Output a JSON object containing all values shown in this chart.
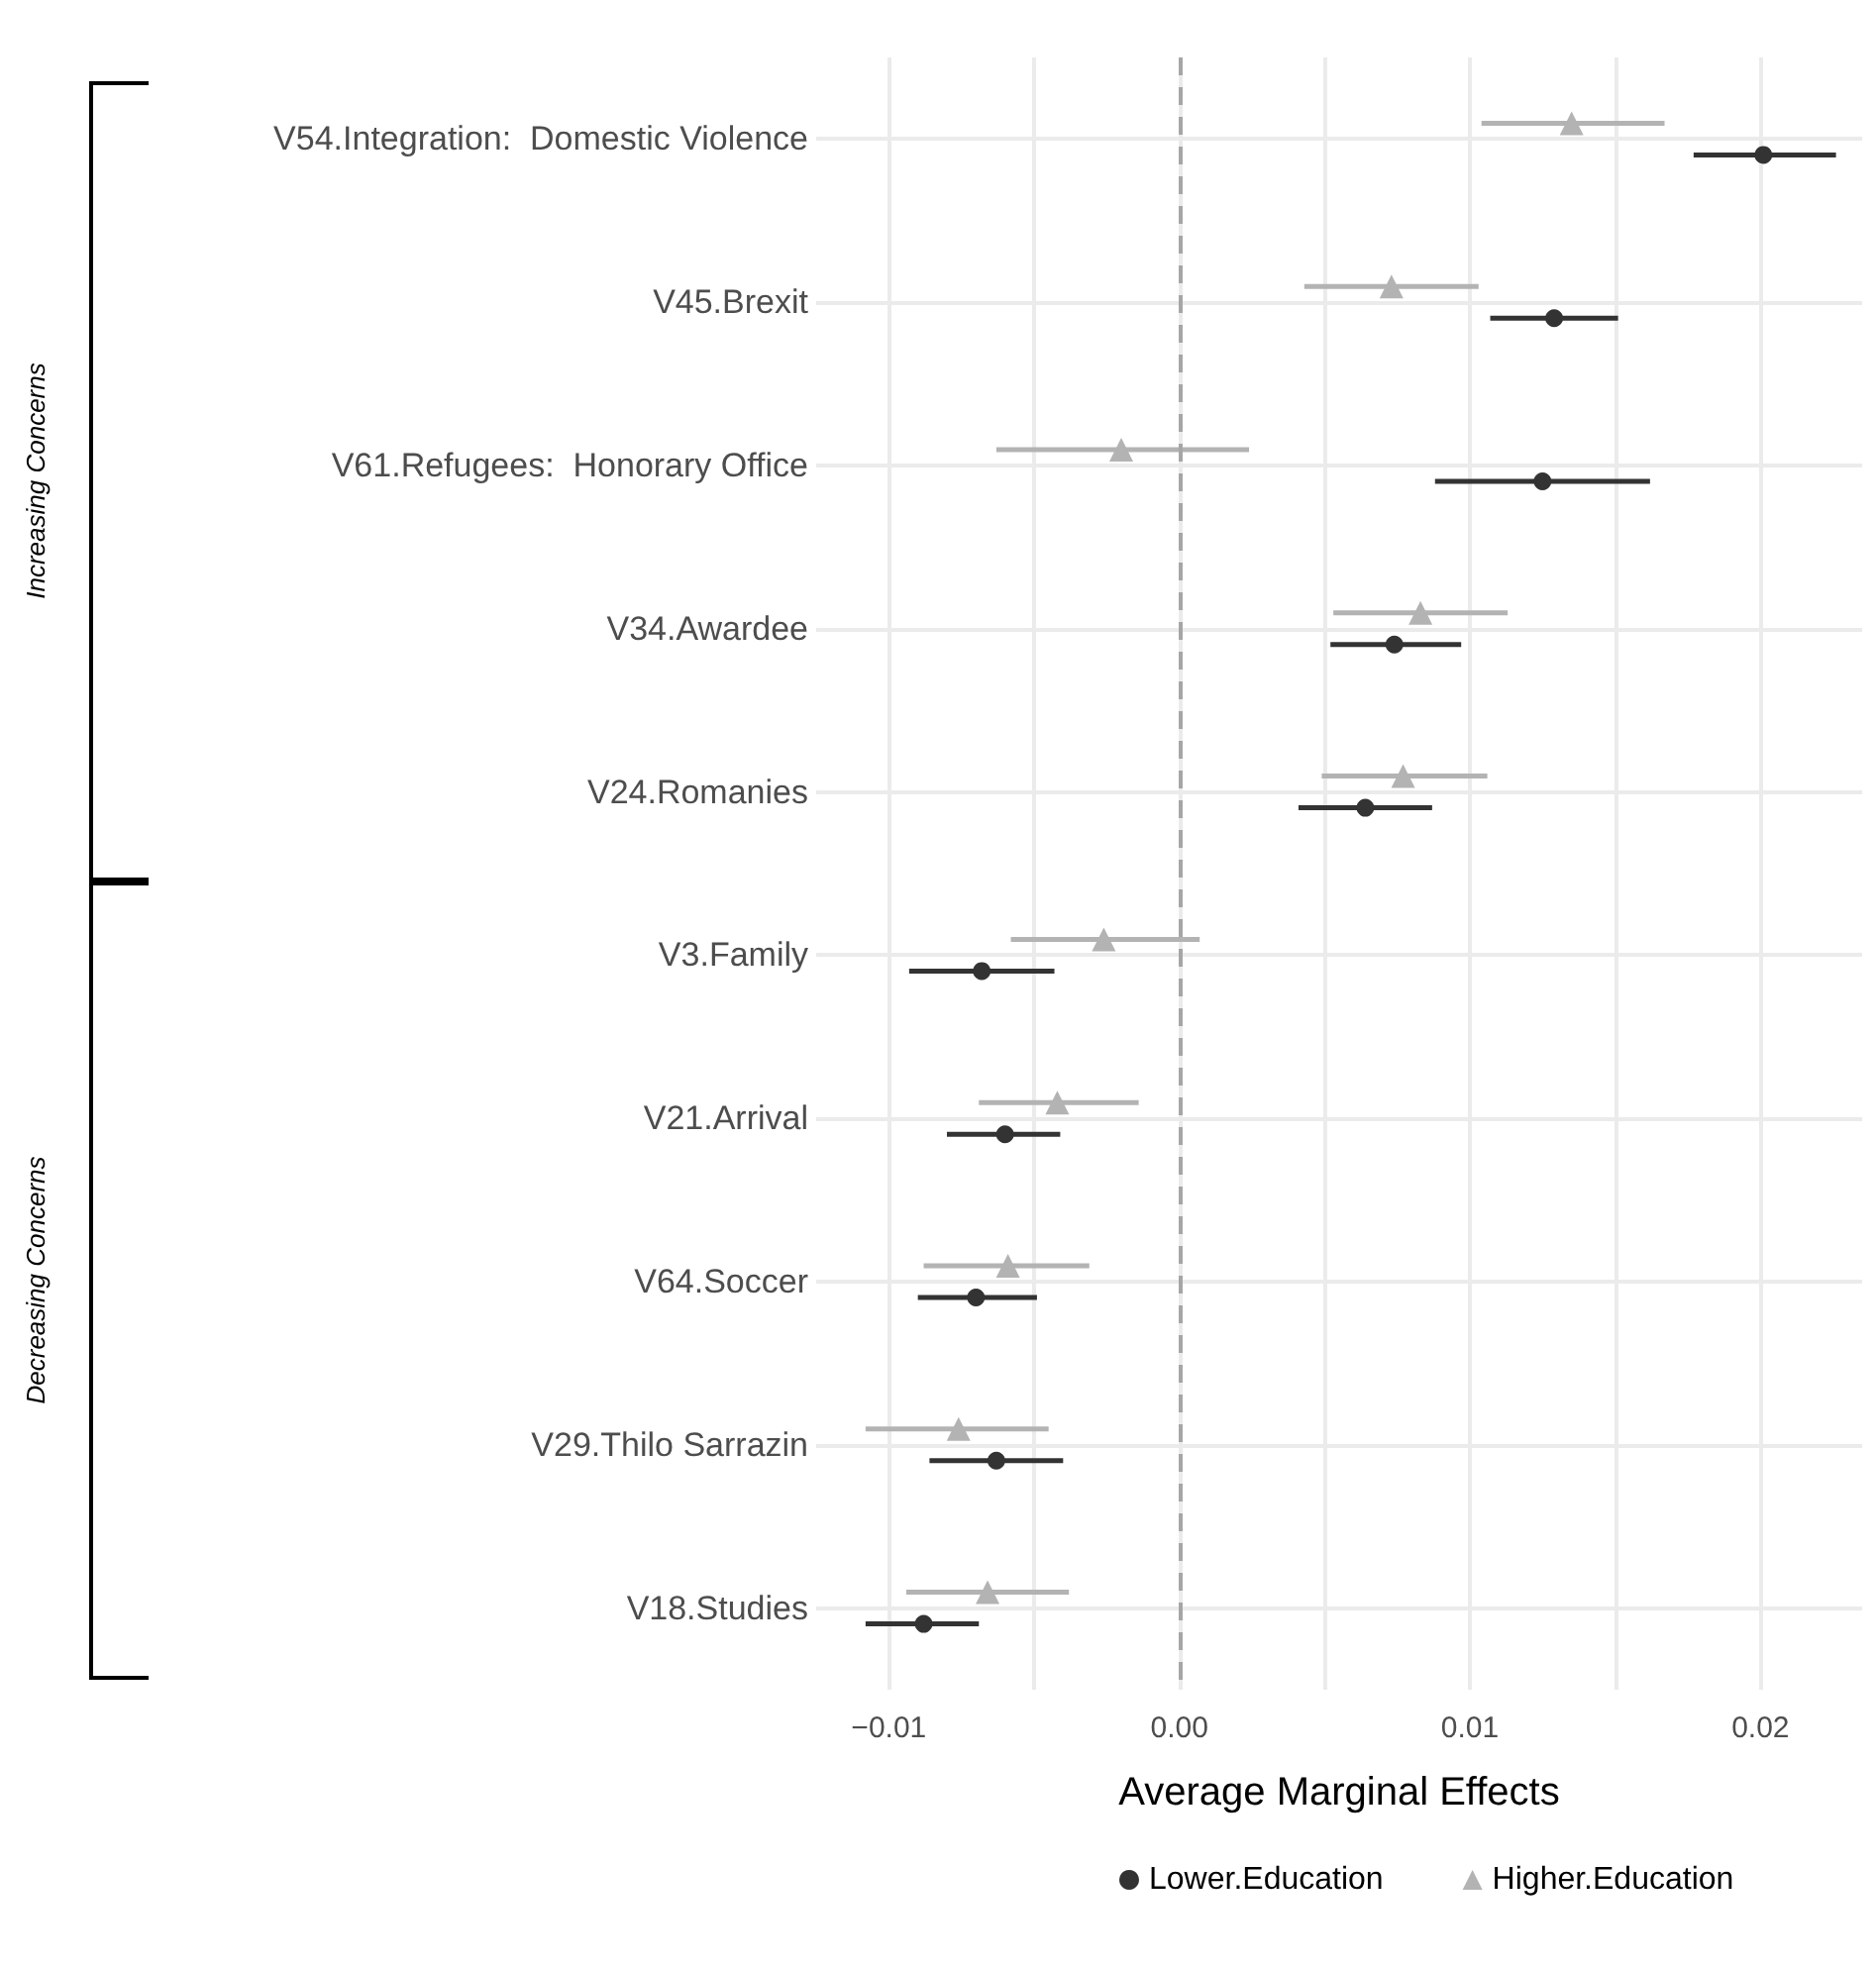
{
  "chart_data": {
    "type": "scatter",
    "orientation": "horizontal",
    "xlabel": "Average Marginal Effects",
    "categories": [
      "V54.Integration:  Domestic Violence",
      "V45.Brexit",
      "V61.Refugees:  Honorary Office",
      "V34.Awardee",
      "V24.Romanies",
      "V3.Family",
      "V21.Arrival",
      "V64.Soccer",
      "V29.Thilo Sarrazin",
      "V18.Studies"
    ],
    "series": [
      {
        "name": "Lower.Education",
        "color": "#333333",
        "marker": "circle",
        "values": [
          0.0201,
          0.0129,
          0.0125,
          0.0074,
          0.0064,
          -0.0068,
          -0.006,
          -0.007,
          -0.0063,
          -0.0088
        ],
        "errors": [
          [
            0.0177,
            0.0226
          ],
          [
            0.0107,
            0.0151
          ],
          [
            0.0088,
            0.0162
          ],
          [
            0.0052,
            0.0097
          ],
          [
            0.0041,
            0.0087
          ],
          [
            -0.0093,
            -0.0043
          ],
          [
            -0.008,
            -0.0041
          ],
          [
            -0.009,
            -0.0049
          ],
          [
            -0.0086,
            -0.004
          ],
          [
            -0.0108,
            -0.0069
          ]
        ]
      },
      {
        "name": "Higher.Education",
        "color": "#b3b3b3",
        "marker": "triangle",
        "values": [
          0.0135,
          0.0073,
          -0.002,
          0.0083,
          0.0077,
          -0.0026,
          -0.0042,
          -0.0059,
          -0.0076,
          -0.0066
        ],
        "errors": [
          [
            0.0104,
            0.0167
          ],
          [
            0.0043,
            0.0103
          ],
          [
            -0.0063,
            0.0024
          ],
          [
            0.0053,
            0.0113
          ],
          [
            0.0049,
            0.0106
          ],
          [
            -0.0058,
            0.0007
          ],
          [
            -0.0069,
            -0.0014
          ],
          [
            -0.0088,
            -0.0031
          ],
          [
            -0.0108,
            -0.0045
          ],
          [
            -0.0094,
            -0.0038
          ]
        ]
      }
    ],
    "xlim": [
      -0.0125,
      0.0235
    ],
    "xticks": [
      {
        "value": -0.01,
        "label": "−0.01"
      },
      {
        "value": -0.005,
        "label": null
      },
      {
        "value": 0,
        "label": "0.00"
      },
      {
        "value": 0.005,
        "label": null
      },
      0.01,
      {
        "value": 0.015,
        "label": null
      },
      0.02
    ],
    "ref_lines": [
      {
        "axis": "x",
        "value": 0,
        "color": "#a6a6a6",
        "line_style": "dashed"
      }
    ],
    "annotations": [
      "Increasing Concerns",
      "Decreasing Concerns"
    ],
    "grid": true,
    "legend": "bottom"
  }
}
